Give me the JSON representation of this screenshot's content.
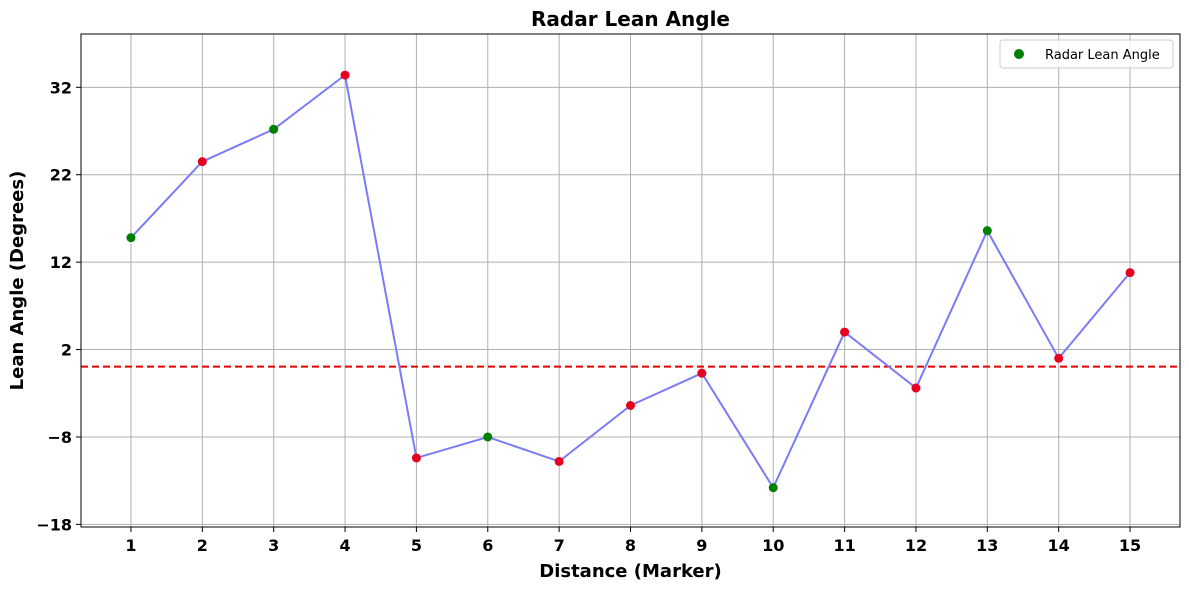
{
  "chart_data": {
    "type": "line",
    "title": "Radar Lean Angle",
    "xlabel": "Distance (Marker)",
    "ylabel": "Lean Angle (Degrees)",
    "x": [
      1,
      2,
      3,
      4,
      5,
      6,
      7,
      8,
      9,
      10,
      11,
      12,
      13,
      14,
      15
    ],
    "xticks": [
      "1",
      "2",
      "3",
      "4",
      "5",
      "6",
      "7",
      "8",
      "9",
      "10",
      "11",
      "12",
      "13",
      "14",
      "15"
    ],
    "yticks": [
      32,
      22,
      12,
      2,
      -8,
      -18
    ],
    "ytick_labels": [
      "32",
      "22",
      "12",
      "2",
      "−8",
      "−18"
    ],
    "xlim": [
      0.3,
      15.7
    ],
    "ylim": [
      -18.3,
      38.1
    ],
    "grid": true,
    "series": [
      {
        "name": "Radar Lean Angle",
        "values": [
          14.8,
          23.5,
          27.2,
          33.4,
          -10.4,
          -8.0,
          -10.8,
          -4.4,
          -0.7,
          -13.8,
          4.0,
          -2.4,
          15.6,
          1.0,
          10.8
        ],
        "point_colors": [
          "#008000",
          "#e8001f",
          "#008000",
          "#e8001f",
          "#e8001f",
          "#008000",
          "#e8001f",
          "#e8001f",
          "#e8001f",
          "#008000",
          "#e8001f",
          "#e8001f",
          "#008000",
          "#e8001f",
          "#e8001f"
        ],
        "line_color": "#7b7bf5",
        "legend_color": "#008000"
      }
    ],
    "reference_line": {
      "y": 0.05,
      "color": "#e00000",
      "style": "dashed"
    },
    "legend": {
      "placement": "top-right",
      "entries": [
        "Radar Lean Angle"
      ]
    }
  }
}
